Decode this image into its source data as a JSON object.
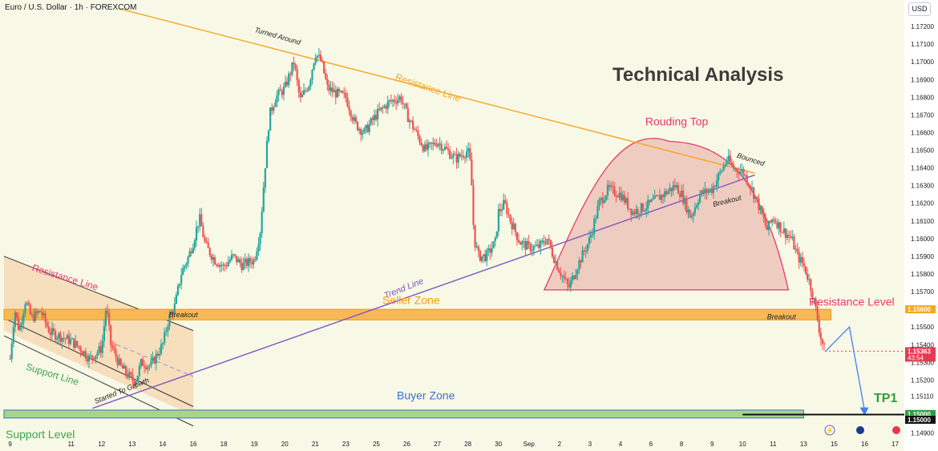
{
  "header": {
    "symbol_title": "Euro / U.S. Dollar · 1h · FOREXCOM",
    "currency_button": "USD"
  },
  "colors": {
    "background": "#f8f8e6",
    "bull": "#26a69a",
    "bear": "#ef5350",
    "resistance_line": "#f5a623",
    "trend_line": "#7e57c2",
    "rounding_top": "#e8386a",
    "seller_zone": "#f7b955",
    "buyer_zone": "#a8d48c",
    "zone_border": "#3b6fd4",
    "projection": "#3b82f6",
    "tp_label": "#2e9e3a",
    "price_tag": "#e53950",
    "level_tag": "#2ea043"
  },
  "chart_data": {
    "type": "candlestick",
    "title": "Technical Analysis",
    "y_axis": {
      "ticks": [
        1.172,
        1.171,
        1.17,
        1.169,
        1.168,
        1.167,
        1.166,
        1.165,
        1.164,
        1.163,
        1.162,
        1.161,
        1.16,
        1.159,
        1.158,
        1.157,
        1.156,
        1.155,
        1.154,
        1.153,
        1.152,
        1.1511,
        1.15,
        1.149
      ],
      "tick_labels": [
        "1.17200",
        "1.17100",
        "1.17000",
        "1.16900",
        "1.16800",
        "1.16700",
        "1.16600",
        "1.16500",
        "1.16400",
        "1.16300",
        "1.16200",
        "1.16100",
        "1.16000",
        "1.15900",
        "1.15800",
        "1.15700",
        "1.15600",
        "1.15500",
        "1.15400",
        "1.15300",
        "1.15200",
        "1.15110",
        "1.15000",
        "1.14900"
      ],
      "range": [
        1.1488,
        1.1735
      ]
    },
    "x_axis": {
      "ticks": [
        {
          "label": "9",
          "x": 0.0
        },
        {
          "label": "11",
          "x": 2.0
        },
        {
          "label": "12",
          "x": 3.0
        },
        {
          "label": "13",
          "x": 4.0
        },
        {
          "label": "14",
          "x": 5.0
        },
        {
          "label": "16",
          "x": 6.0
        },
        {
          "label": "18",
          "x": 7.0
        },
        {
          "label": "19",
          "x": 8.0
        },
        {
          "label": "20",
          "x": 9.0
        },
        {
          "label": "21",
          "x": 10.0
        },
        {
          "label": "23",
          "x": 11.0
        },
        {
          "label": "25",
          "x": 12.0
        },
        {
          "label": "26",
          "x": 13.0
        },
        {
          "label": "27",
          "x": 14.0
        },
        {
          "label": "28",
          "x": 15.0
        },
        {
          "label": "30",
          "x": 16.0
        },
        {
          "label": "Sep",
          "x": 17.0
        },
        {
          "label": "2",
          "x": 18.0
        },
        {
          "label": "3",
          "x": 19.0
        },
        {
          "label": "4",
          "x": 20.0
        },
        {
          "label": "6",
          "x": 21.0
        },
        {
          "label": "8",
          "x": 22.0
        },
        {
          "label": "9",
          "x": 23.0
        },
        {
          "label": "10",
          "x": 24.0
        },
        {
          "label": "11",
          "x": 25.0
        },
        {
          "label": "13",
          "x": 26.0
        },
        {
          "label": "15",
          "x": 27.0
        },
        {
          "label": "16",
          "x": 28.0
        },
        {
          "label": "17",
          "x": 29.0
        }
      ],
      "range": [
        -0.2,
        29.3
      ]
    },
    "price_path": [
      [
        0.0,
        1.1532
      ],
      [
        0.15,
        1.156
      ],
      [
        0.3,
        1.1548
      ],
      [
        0.5,
        1.1565
      ],
      [
        0.7,
        1.1555
      ],
      [
        1.0,
        1.1559
      ],
      [
        1.3,
        1.1547
      ],
      [
        1.6,
        1.1545
      ],
      [
        2.0,
        1.1542
      ],
      [
        2.3,
        1.1538
      ],
      [
        2.6,
        1.1532
      ],
      [
        3.0,
        1.1538
      ],
      [
        3.15,
        1.1562
      ],
      [
        3.3,
        1.154
      ],
      [
        3.6,
        1.1528
      ],
      [
        3.9,
        1.1522
      ],
      [
        4.1,
        1.1519
      ],
      [
        4.3,
        1.153
      ],
      [
        4.6,
        1.1528
      ],
      [
        5.0,
        1.154
      ],
      [
        5.2,
        1.1555
      ],
      [
        5.4,
        1.1562
      ],
      [
        5.6,
        1.158
      ],
      [
        5.85,
        1.159
      ],
      [
        6.0,
        1.1598
      ],
      [
        6.2,
        1.1612
      ],
      [
        6.4,
        1.1596
      ],
      [
        6.7,
        1.1588
      ],
      [
        7.0,
        1.1584
      ],
      [
        7.3,
        1.159
      ],
      [
        7.6,
        1.1585
      ],
      [
        8.0,
        1.1588
      ],
      [
        8.2,
        1.1605
      ],
      [
        8.35,
        1.164
      ],
      [
        8.5,
        1.167
      ],
      [
        8.7,
        1.168
      ],
      [
        9.0,
        1.1685
      ],
      [
        9.3,
        1.17
      ],
      [
        9.5,
        1.1678
      ],
      [
        9.8,
        1.1688
      ],
      [
        10.0,
        1.1705
      ],
      [
        10.2,
        1.17
      ],
      [
        10.4,
        1.1685
      ],
      [
        10.7,
        1.1682
      ],
      [
        11.0,
        1.168
      ],
      [
        11.3,
        1.1665
      ],
      [
        11.6,
        1.166
      ],
      [
        12.0,
        1.167
      ],
      [
        12.4,
        1.1677
      ],
      [
        12.8,
        1.168
      ],
      [
        13.0,
        1.167
      ],
      [
        13.3,
        1.166
      ],
      [
        13.6,
        1.165
      ],
      [
        14.0,
        1.1655
      ],
      [
        14.3,
        1.165
      ],
      [
        14.6,
        1.1645
      ],
      [
        15.0,
        1.165
      ],
      [
        15.1,
        1.164
      ],
      [
        15.2,
        1.16
      ],
      [
        15.35,
        1.159
      ],
      [
        15.6,
        1.159
      ],
      [
        15.9,
        1.1598
      ],
      [
        16.0,
        1.1615
      ],
      [
        16.2,
        1.162
      ],
      [
        16.4,
        1.161
      ],
      [
        16.7,
        1.1598
      ],
      [
        17.0,
        1.1595
      ],
      [
        17.3,
        1.1595
      ],
      [
        17.6,
        1.16
      ],
      [
        17.8,
        1.159
      ],
      [
        18.0,
        1.1582
      ],
      [
        18.3,
        1.1572
      ],
      [
        18.6,
        1.1585
      ],
      [
        19.0,
        1.16
      ],
      [
        19.3,
        1.162
      ],
      [
        19.6,
        1.1628
      ],
      [
        20.0,
        1.1625
      ],
      [
        20.4,
        1.1615
      ],
      [
        20.8,
        1.1618
      ],
      [
        21.0,
        1.162
      ],
      [
        21.4,
        1.1625
      ],
      [
        21.8,
        1.163
      ],
      [
        22.0,
        1.1625
      ],
      [
        22.3,
        1.1612
      ],
      [
        22.6,
        1.1625
      ],
      [
        23.0,
        1.1628
      ],
      [
        23.2,
        1.1635
      ],
      [
        23.5,
        1.1645
      ],
      [
        23.7,
        1.164
      ],
      [
        24.0,
        1.1638
      ],
      [
        24.2,
        1.1632
      ],
      [
        24.5,
        1.162
      ],
      [
        24.8,
        1.1605
      ],
      [
        25.0,
        1.1612
      ],
      [
        25.3,
        1.1605
      ],
      [
        25.6,
        1.16
      ],
      [
        25.8,
        1.159
      ],
      [
        26.0,
        1.1585
      ],
      [
        26.2,
        1.1575
      ],
      [
        26.4,
        1.156
      ],
      [
        26.55,
        1.1545
      ],
      [
        26.7,
        1.1536
      ]
    ],
    "annotations": {
      "title_text": "Technical Analysis",
      "turned_around": "Turned Around",
      "resistance_line_top": "Resistance Line",
      "rounding_top": "Rouding Top",
      "bounced": "Bounced",
      "breakout_right": "Breakout",
      "trend_line": "Trend Line",
      "seller_zone": "Seller Zone",
      "resistance_level": "Resistance Level",
      "breakout_zone_left": "Breakout",
      "breakout_zone_right": "Breakout",
      "resistance_line_left": "Resistance Line",
      "support_line": "Support Line",
      "started_to_growth": "Started To Growth",
      "buyer_zone": "Buyer Zone",
      "tp1": "TP1",
      "support_level": "Support Level"
    },
    "levels": {
      "seller_zone": [
        1.1554,
        1.156
      ],
      "buyer_zone": [
        1.14985,
        1.1503
      ],
      "resistance_level": 1.156,
      "support_level": 1.15,
      "current_price": 1.15363,
      "tp1": 1.15
    },
    "price_tags": {
      "resistance_value": "1.15600",
      "current_value": "1.15363",
      "countdown": "43:54",
      "tp_value": "1.15000",
      "support_value": "1.15000"
    },
    "grid": false,
    "legend": "none"
  }
}
